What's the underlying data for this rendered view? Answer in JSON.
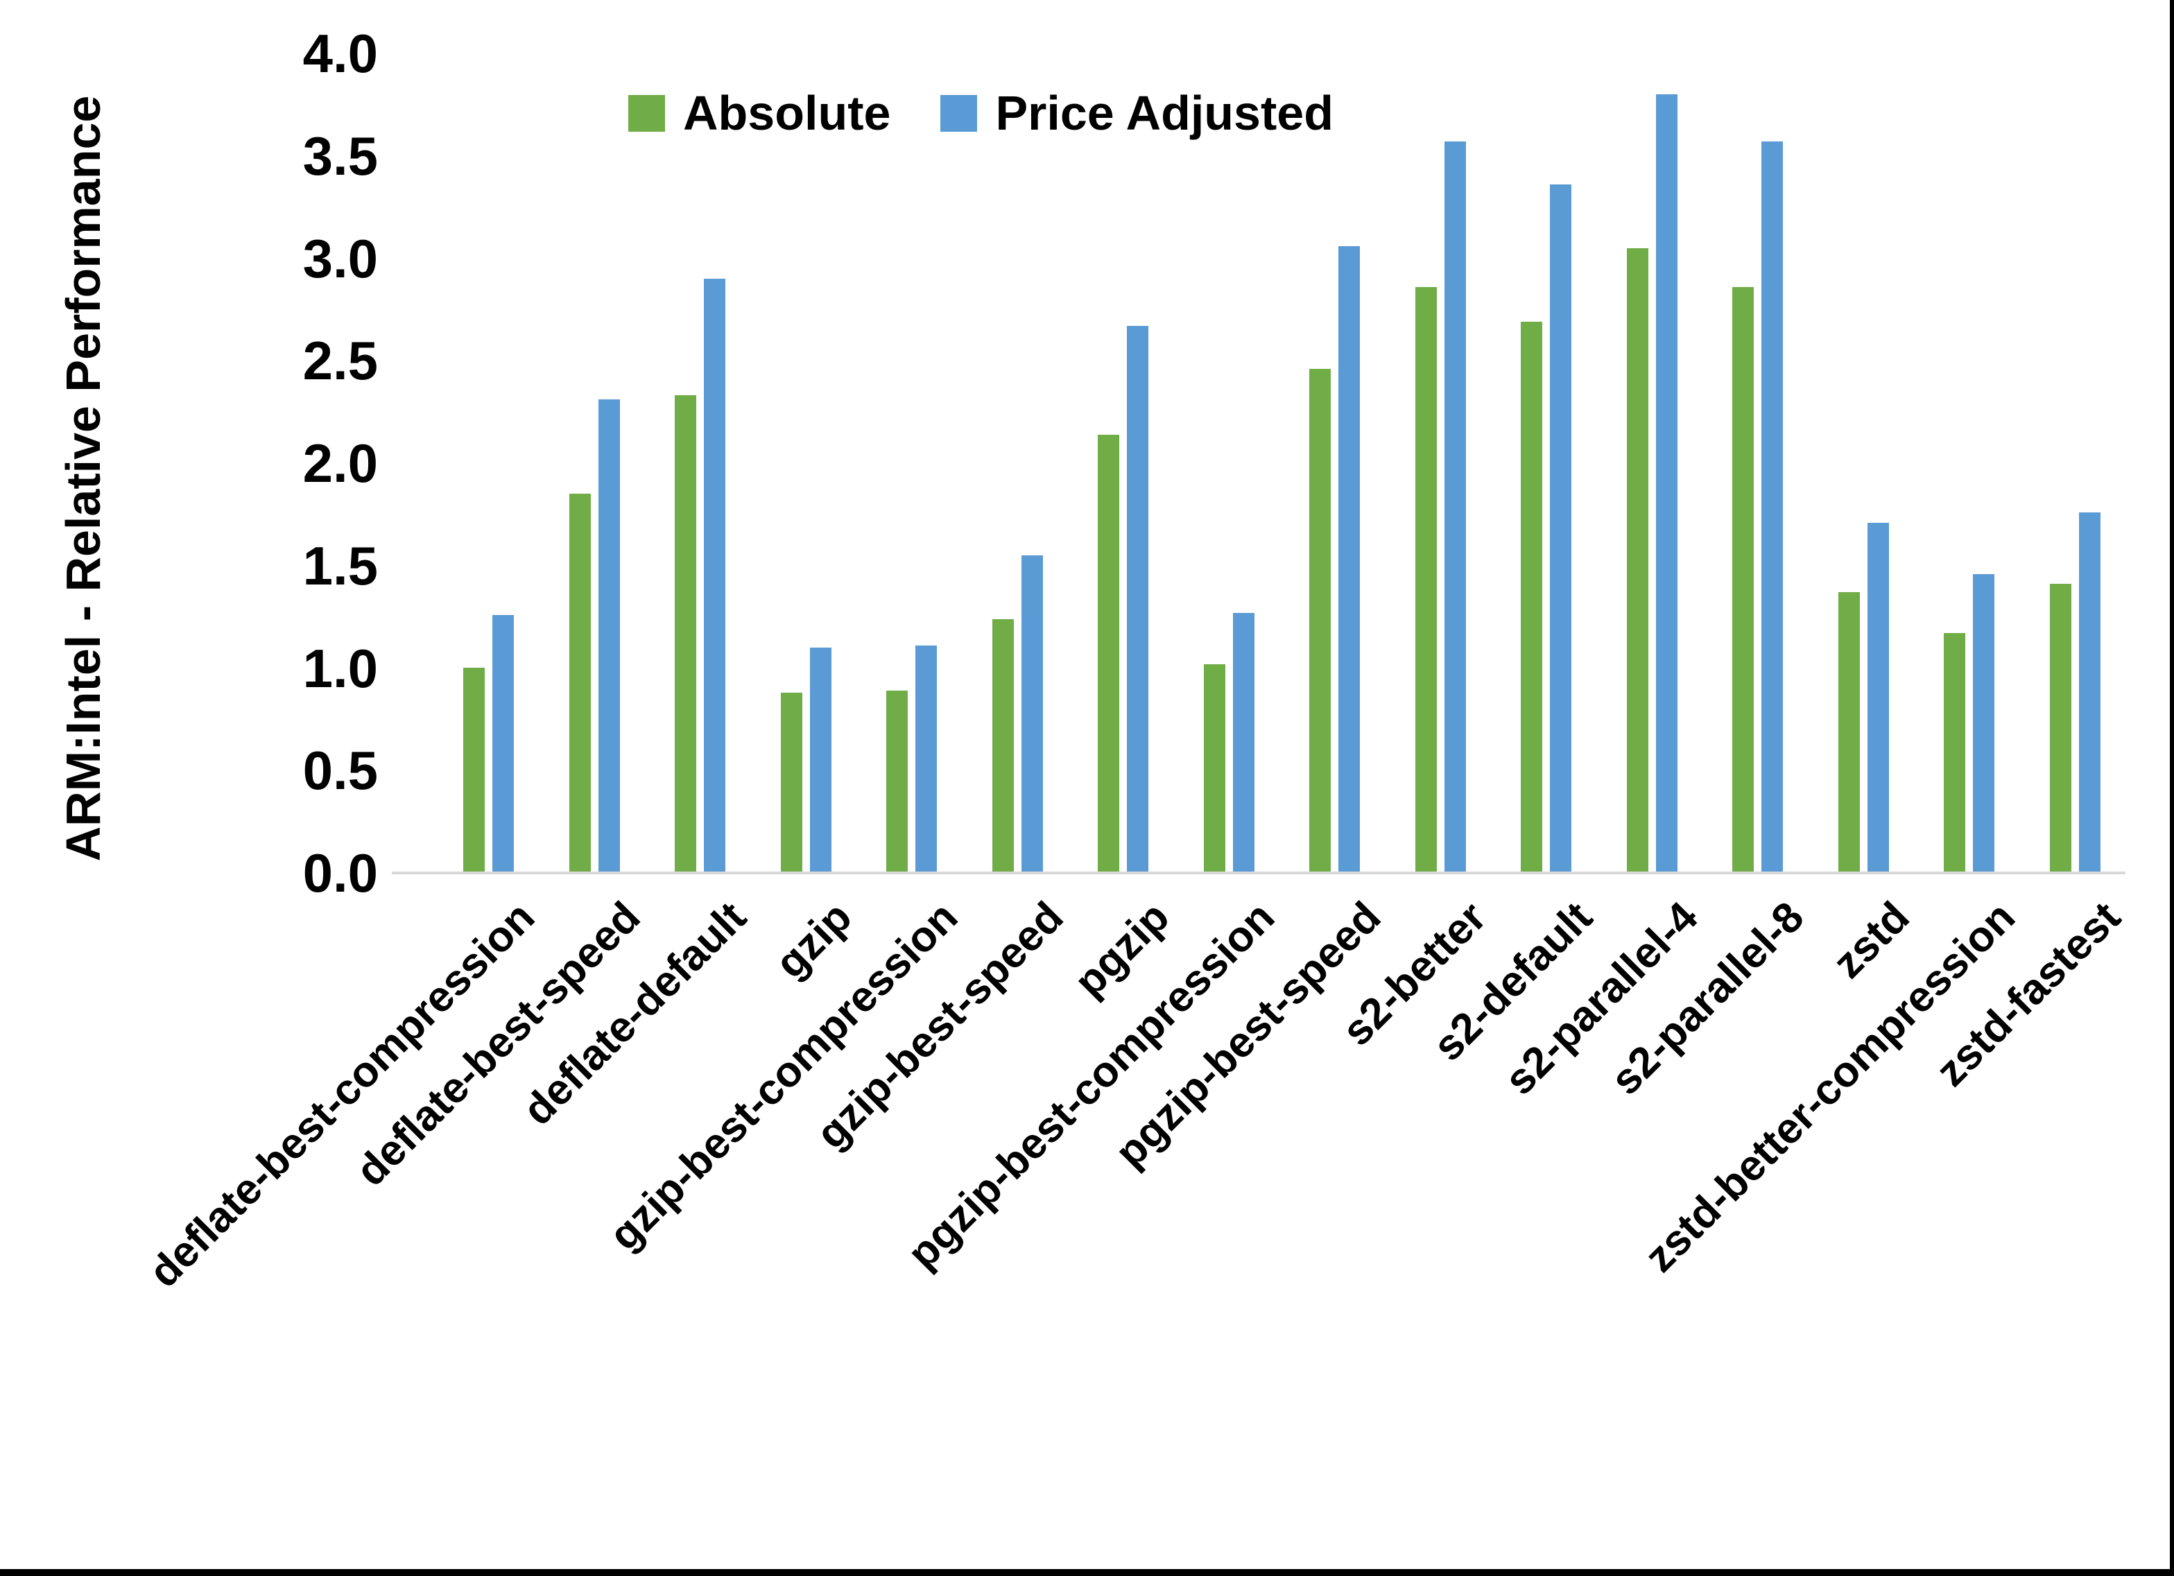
{
  "page": {
    "background": "#ffffff",
    "frame_color": "#000000"
  },
  "legend": {
    "items": [
      {
        "label": "Absolute",
        "color": "#70AD47"
      },
      {
        "label": "Price Adjusted",
        "color": "#5B9BD5"
      }
    ]
  },
  "chart_data": {
    "type": "bar",
    "title": "",
    "ylabel": "ARM:Intel - Relative Performance",
    "xlabel": "",
    "ylim": [
      0.0,
      4.0
    ],
    "ytick_step": 0.5,
    "yticks": [
      "4.0",
      "3.5",
      "3.0",
      "2.5",
      "2.0",
      "1.5",
      "1.0",
      "0.5",
      "0.0"
    ],
    "grid": false,
    "legend_position": "top",
    "axis_line_color": "#d9d9d9",
    "categories": [
      "deflate-best-compression",
      "deflate-best-speed",
      "deflate-default",
      "gzip",
      "gzip-best-compression",
      "gzip-best-speed",
      "pgzip",
      "pgzip-best-compression",
      "pgzip-best-speed",
      "s2-better",
      "s2-default",
      "s2-parallel-4",
      "s2-parallel-8",
      "zstd",
      "zstd-better-compression",
      "zstd-fastest"
    ],
    "series": [
      {
        "name": "Absolute",
        "color": "#70AD47",
        "values": [
          1.0,
          1.85,
          2.33,
          0.88,
          0.89,
          1.24,
          2.14,
          1.02,
          2.46,
          2.86,
          2.69,
          3.05,
          2.86,
          1.37,
          1.17,
          1.41
        ]
      },
      {
        "name": "Price Adjusted",
        "color": "#5B9BD5",
        "values": [
          1.26,
          2.31,
          2.9,
          1.1,
          1.11,
          1.55,
          2.67,
          1.27,
          3.06,
          3.57,
          3.36,
          3.8,
          3.57,
          1.71,
          1.46,
          1.76
        ]
      }
    ]
  }
}
